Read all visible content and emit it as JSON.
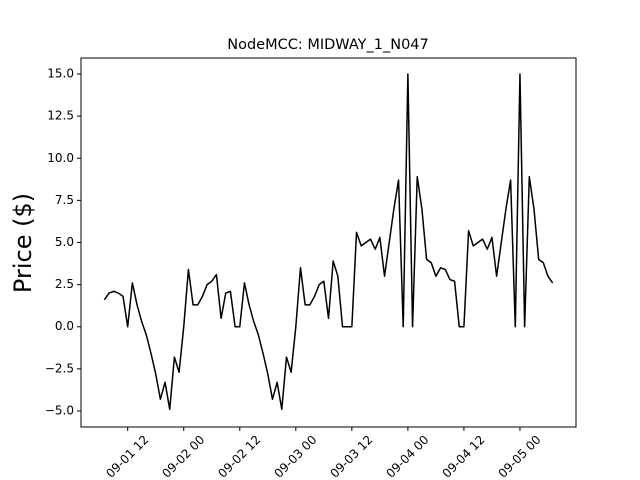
{
  "chart_data": {
    "type": "line",
    "title": "NodeMCC: MIDWAY_1_N047",
    "y_label": "Price ($)",
    "color": "#000000",
    "x": [
      "09-01 07",
      "09-01 08",
      "09-01 09",
      "09-01 10",
      "09-01 11",
      "09-01 12",
      "09-01 13",
      "09-01 14",
      "09-01 15",
      "09-01 16",
      "09-01 17",
      "09-01 18",
      "09-01 19",
      "09-01 20",
      "09-01 21",
      "09-01 22",
      "09-01 23",
      "09-02 00",
      "09-02 01",
      "09-02 02",
      "09-02 03",
      "09-02 04",
      "09-02 05",
      "09-02 06",
      "09-02 07",
      "09-02 08",
      "09-02 09",
      "09-02 10",
      "09-02 11",
      "09-02 12",
      "09-02 13",
      "09-02 14",
      "09-02 15",
      "09-02 16",
      "09-02 17",
      "09-02 18",
      "09-02 19",
      "09-02 20",
      "09-02 21",
      "09-02 22",
      "09-02 23",
      "09-03 00",
      "09-03 01",
      "09-03 02",
      "09-03 03",
      "09-03 04",
      "09-03 05",
      "09-03 06",
      "09-03 07",
      "09-03 08",
      "09-03 09",
      "09-03 10",
      "09-03 11",
      "09-03 12",
      "09-03 13",
      "09-03 14",
      "09-03 15",
      "09-03 16",
      "09-03 17",
      "09-03 18",
      "09-03 19",
      "09-03 20",
      "09-03 21",
      "09-03 22",
      "09-03 23",
      "09-04 00",
      "09-04 01",
      "09-04 02",
      "09-04 03",
      "09-04 04",
      "09-04 05",
      "09-04 06",
      "09-04 07",
      "09-04 08",
      "09-04 09",
      "09-04 10",
      "09-04 11",
      "09-04 12",
      "09-04 13",
      "09-04 14",
      "09-04 15",
      "09-04 16",
      "09-04 17",
      "09-04 18",
      "09-04 19",
      "09-04 20",
      "09-04 21",
      "09-04 22",
      "09-04 23",
      "09-05 00",
      "09-05 01",
      "09-05 02",
      "09-05 03",
      "09-05 04",
      "09-05 05",
      "09-05 06",
      "09-05 07"
    ],
    "values": [
      1.6,
      2.0,
      2.1,
      2.0,
      1.8,
      0,
      2.6,
      1.3,
      0.3,
      -0.5,
      -1.6,
      -2.8,
      -4.3,
      -3.3,
      -4.9,
      -1.8,
      -2.7,
      0,
      3.4,
      1.3,
      1.3,
      1.8,
      2.5,
      2.7,
      3.1,
      0.5,
      2.0,
      2.1,
      0,
      0,
      2.6,
      1.3,
      0.3,
      -0.5,
      -1.6,
      -2.8,
      -4.3,
      -3.3,
      -4.9,
      -1.8,
      -2.7,
      0,
      3.5,
      1.3,
      1.3,
      1.8,
      2.5,
      2.7,
      0.5,
      3.9,
      3.0,
      0,
      0,
      0,
      5.6,
      4.8,
      5.0,
      5.2,
      4.6,
      5.3,
      3.0,
      5.0,
      7.0,
      8.7,
      0,
      15.0,
      0,
      8.9,
      7.0,
      4.0,
      3.8,
      3.0,
      3.5,
      3.4,
      2.8,
      2.7,
      0,
      0,
      5.7,
      4.8,
      5.0,
      5.2,
      4.6,
      5.3,
      3.0,
      5.0,
      7.0,
      8.7,
      0,
      15.0,
      0,
      8.9,
      7.0,
      4.0,
      3.8,
      3.0,
      2.6
    ],
    "xlim": [
      "09-01 02",
      "09-05 12"
    ],
    "xticks": [
      "09-01 12",
      "09-02 00",
      "09-02 12",
      "09-03 00",
      "09-03 12",
      "09-04 00",
      "09-04 12",
      "09-05 00"
    ],
    "ylim": [
      -5.95,
      15.95
    ],
    "yticks": [
      {
        "value": -5,
        "label": "−5.0"
      },
      {
        "value": -2.5,
        "label": "−2.5"
      },
      {
        "value": 0,
        "label": "0.0"
      },
      {
        "value": 2.5,
        "label": "2.5"
      },
      {
        "value": 5,
        "label": "5.0"
      },
      {
        "value": 7.5,
        "label": "7.5"
      },
      {
        "value": 10,
        "label": "10.0"
      },
      {
        "value": 12.5,
        "label": "12.5"
      },
      {
        "value": 15,
        "label": "15.0"
      }
    ]
  }
}
